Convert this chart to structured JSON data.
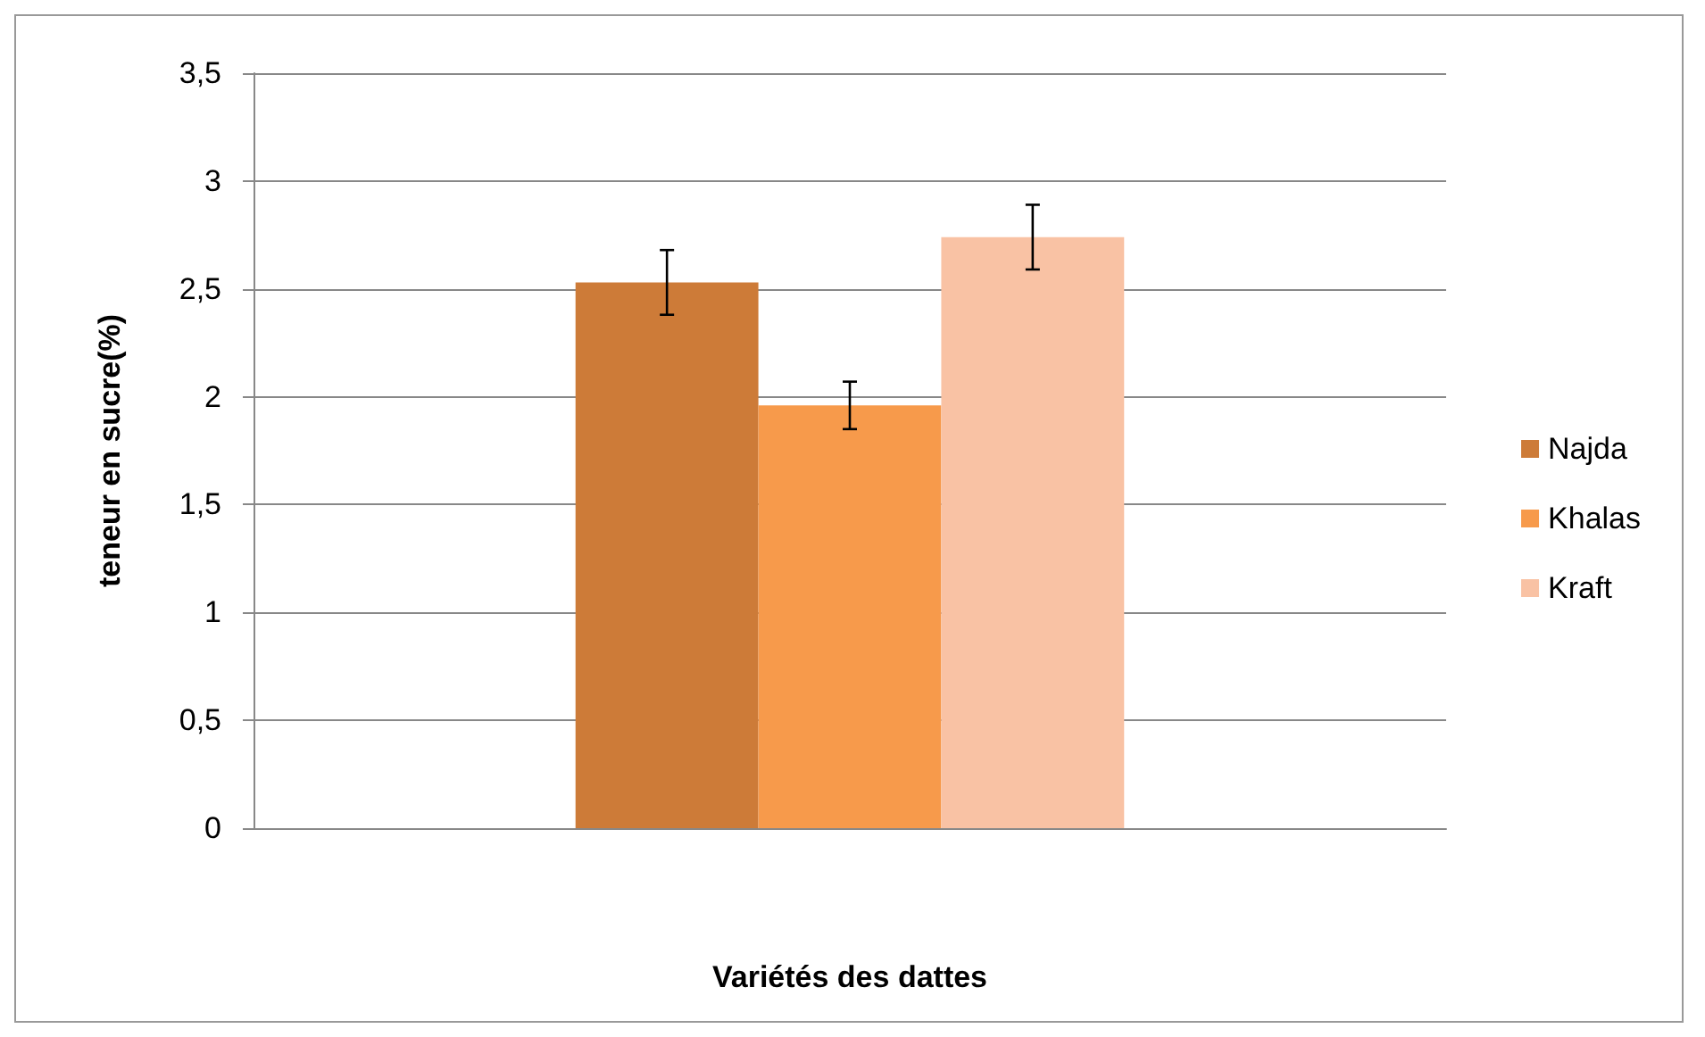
{
  "chart_data": {
    "type": "bar",
    "xlabel": "Variétés des dattes",
    "ylabel": "teneur en sucre(%)",
    "categories": [
      null
    ],
    "series": [
      {
        "name": "Najda",
        "color": "#cd7b38",
        "values": [
          2.53
        ],
        "errors": [
          0.15
        ]
      },
      {
        "name": "Khalas",
        "color": "#f79a4b",
        "values": [
          1.96
        ],
        "errors": [
          0.11
        ]
      },
      {
        "name": "Kraft",
        "color": "#f9c2a4",
        "values": [
          2.74
        ],
        "errors": [
          0.15
        ]
      }
    ],
    "ylim": [
      0,
      3.5
    ],
    "yticks": [
      0,
      {
        "value": 0.5,
        "label": "0,5"
      },
      1,
      {
        "value": 1.5,
        "label": "1,5"
      },
      2,
      {
        "value": 2.5,
        "label": "2,5"
      },
      3,
      {
        "value": 3.5,
        "label": "3,5"
      }
    ],
    "grid": "y",
    "legend": "right"
  }
}
